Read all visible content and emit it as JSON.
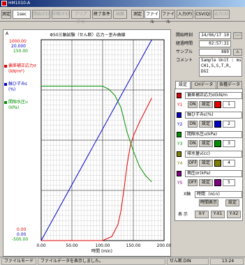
{
  "window": {
    "title": "HM1010-A"
  },
  "toolbar": {
    "test_label": "測定",
    "interval_value": "1sec",
    "start_label": "開始(F2)",
    "stop_label": "中断(F3)",
    "clear_label": "クリア(F4)",
    "end_condition_label": "終了条件",
    "graph_label": "画面",
    "measure_label": "測定",
    "file_tab_label": "ファイル",
    "file_menu_label": "ファイル",
    "io_label": "入力(P)",
    "csv_label": "CSV(Q)",
    "exit_label": "出力(X)"
  },
  "graph": {
    "corner_label": "A",
    "title": "Φ50三軸試験（せん断）応力－歪み曲線",
    "y_labels": {
      "top1": "1000.00",
      "top2": "20.000",
      "top3": "150.00",
      "bot1": "0.00",
      "bot2": "0.00",
      "bot3": "-500.00"
    },
    "legend": [
      {
        "label": "偏差補正応力σ\n(kN/m²)",
        "color": "#e00000"
      },
      {
        "label": "軸ひずみε\n(%)",
        "color": "#0000c8"
      },
      {
        "label": "間隙水圧u\n(kPa)",
        "color": "#009000"
      }
    ],
    "xlabel": "時間 (min)"
  },
  "chart_data": {
    "type": "line",
    "title": "Φ50三軸試験（せん断）応力－歪み曲線",
    "xlabel": "時間 (min)",
    "xlim": [
      0,
      200
    ],
    "x_ticks": [
      "0.00",
      "50.00",
      "100.00",
      "150.00",
      "200.00"
    ],
    "series": [
      {
        "name": "偏差補正応力σ",
        "color": "#e00000",
        "ylim": [
          0,
          1000
        ],
        "x": [
          0,
          100,
          115,
          125,
          130,
          135,
          140,
          145,
          150,
          160,
          170,
          180
        ],
        "y": [
          0,
          0,
          20,
          80,
          150,
          260,
          380,
          470,
          520,
          590,
          650,
          710
        ]
      },
      {
        "name": "軸ひずみε",
        "color": "#0000c8",
        "ylim": [
          0,
          20
        ],
        "x": [
          0,
          180
        ],
        "y": [
          0,
          20
        ]
      },
      {
        "name": "間隙水圧u",
        "color": "#009000",
        "ylim": [
          -500,
          150
        ],
        "x": [
          0,
          100,
          110,
          120,
          130,
          140,
          150,
          160,
          170,
          180
        ],
        "y": [
          0,
          0,
          -10,
          -30,
          -70,
          -150,
          -210,
          -260,
          -290,
          -310
        ]
      }
    ]
  },
  "info": {
    "start_label": "開始時刻",
    "start_value": "14/06/17 10",
    "btn1_label": "Set",
    "elapsed_label": "経過時間",
    "elapsed_value": "02:57:31",
    "sample_label": "サンプル",
    "sample_value": "889",
    "comment_label": "コメント",
    "comment_value": "Sample Unit : msec\nCH1,S,S,T,R,\nDGI"
  },
  "tabs": [
    "設定",
    "CHデータ",
    "各種データ"
  ],
  "channels": [
    {
      "tag": "Y1",
      "name": "偏差補正応力σ(kN/m",
      "btn_a": "ON",
      "btn_b": "設定",
      "num": "1",
      "color": "#e00000"
    },
    {
      "tag": "Y2",
      "name": "軸ひずみε(%)",
      "btn_a": "ON",
      "btn_b": "設定",
      "num": "2",
      "color": "#0000c8"
    },
    {
      "tag": "Y3",
      "name": "間隙水圧u(kPa)",
      "btn_a": "ON",
      "btn_b": "設定",
      "num": "3",
      "color": "#009000"
    },
    {
      "tag": "Y4",
      "name": "排水量v(cc)",
      "btn_a": "OFF",
      "btn_b": "設定",
      "num": "4",
      "color": "#808000"
    },
    {
      "tag": "Y5",
      "name": "側圧σr(kPa)",
      "btn_a": "OFF",
      "btn_b": "設定",
      "num": "5",
      "color": "#800080"
    }
  ],
  "x_axis": {
    "label": "X軸",
    "value": "時間 (min)",
    "display_btn": "時間表示",
    "set_btn": "設定"
  },
  "display": {
    "label": "表 示",
    "b1": "X-Y",
    "b2": "Y-X1",
    "b3": "Y-X2"
  },
  "status": {
    "mode": "ファイルモード",
    "message": "ファイルデータを表示しました。",
    "right": "せん断.DIN",
    "time": "13:24"
  }
}
